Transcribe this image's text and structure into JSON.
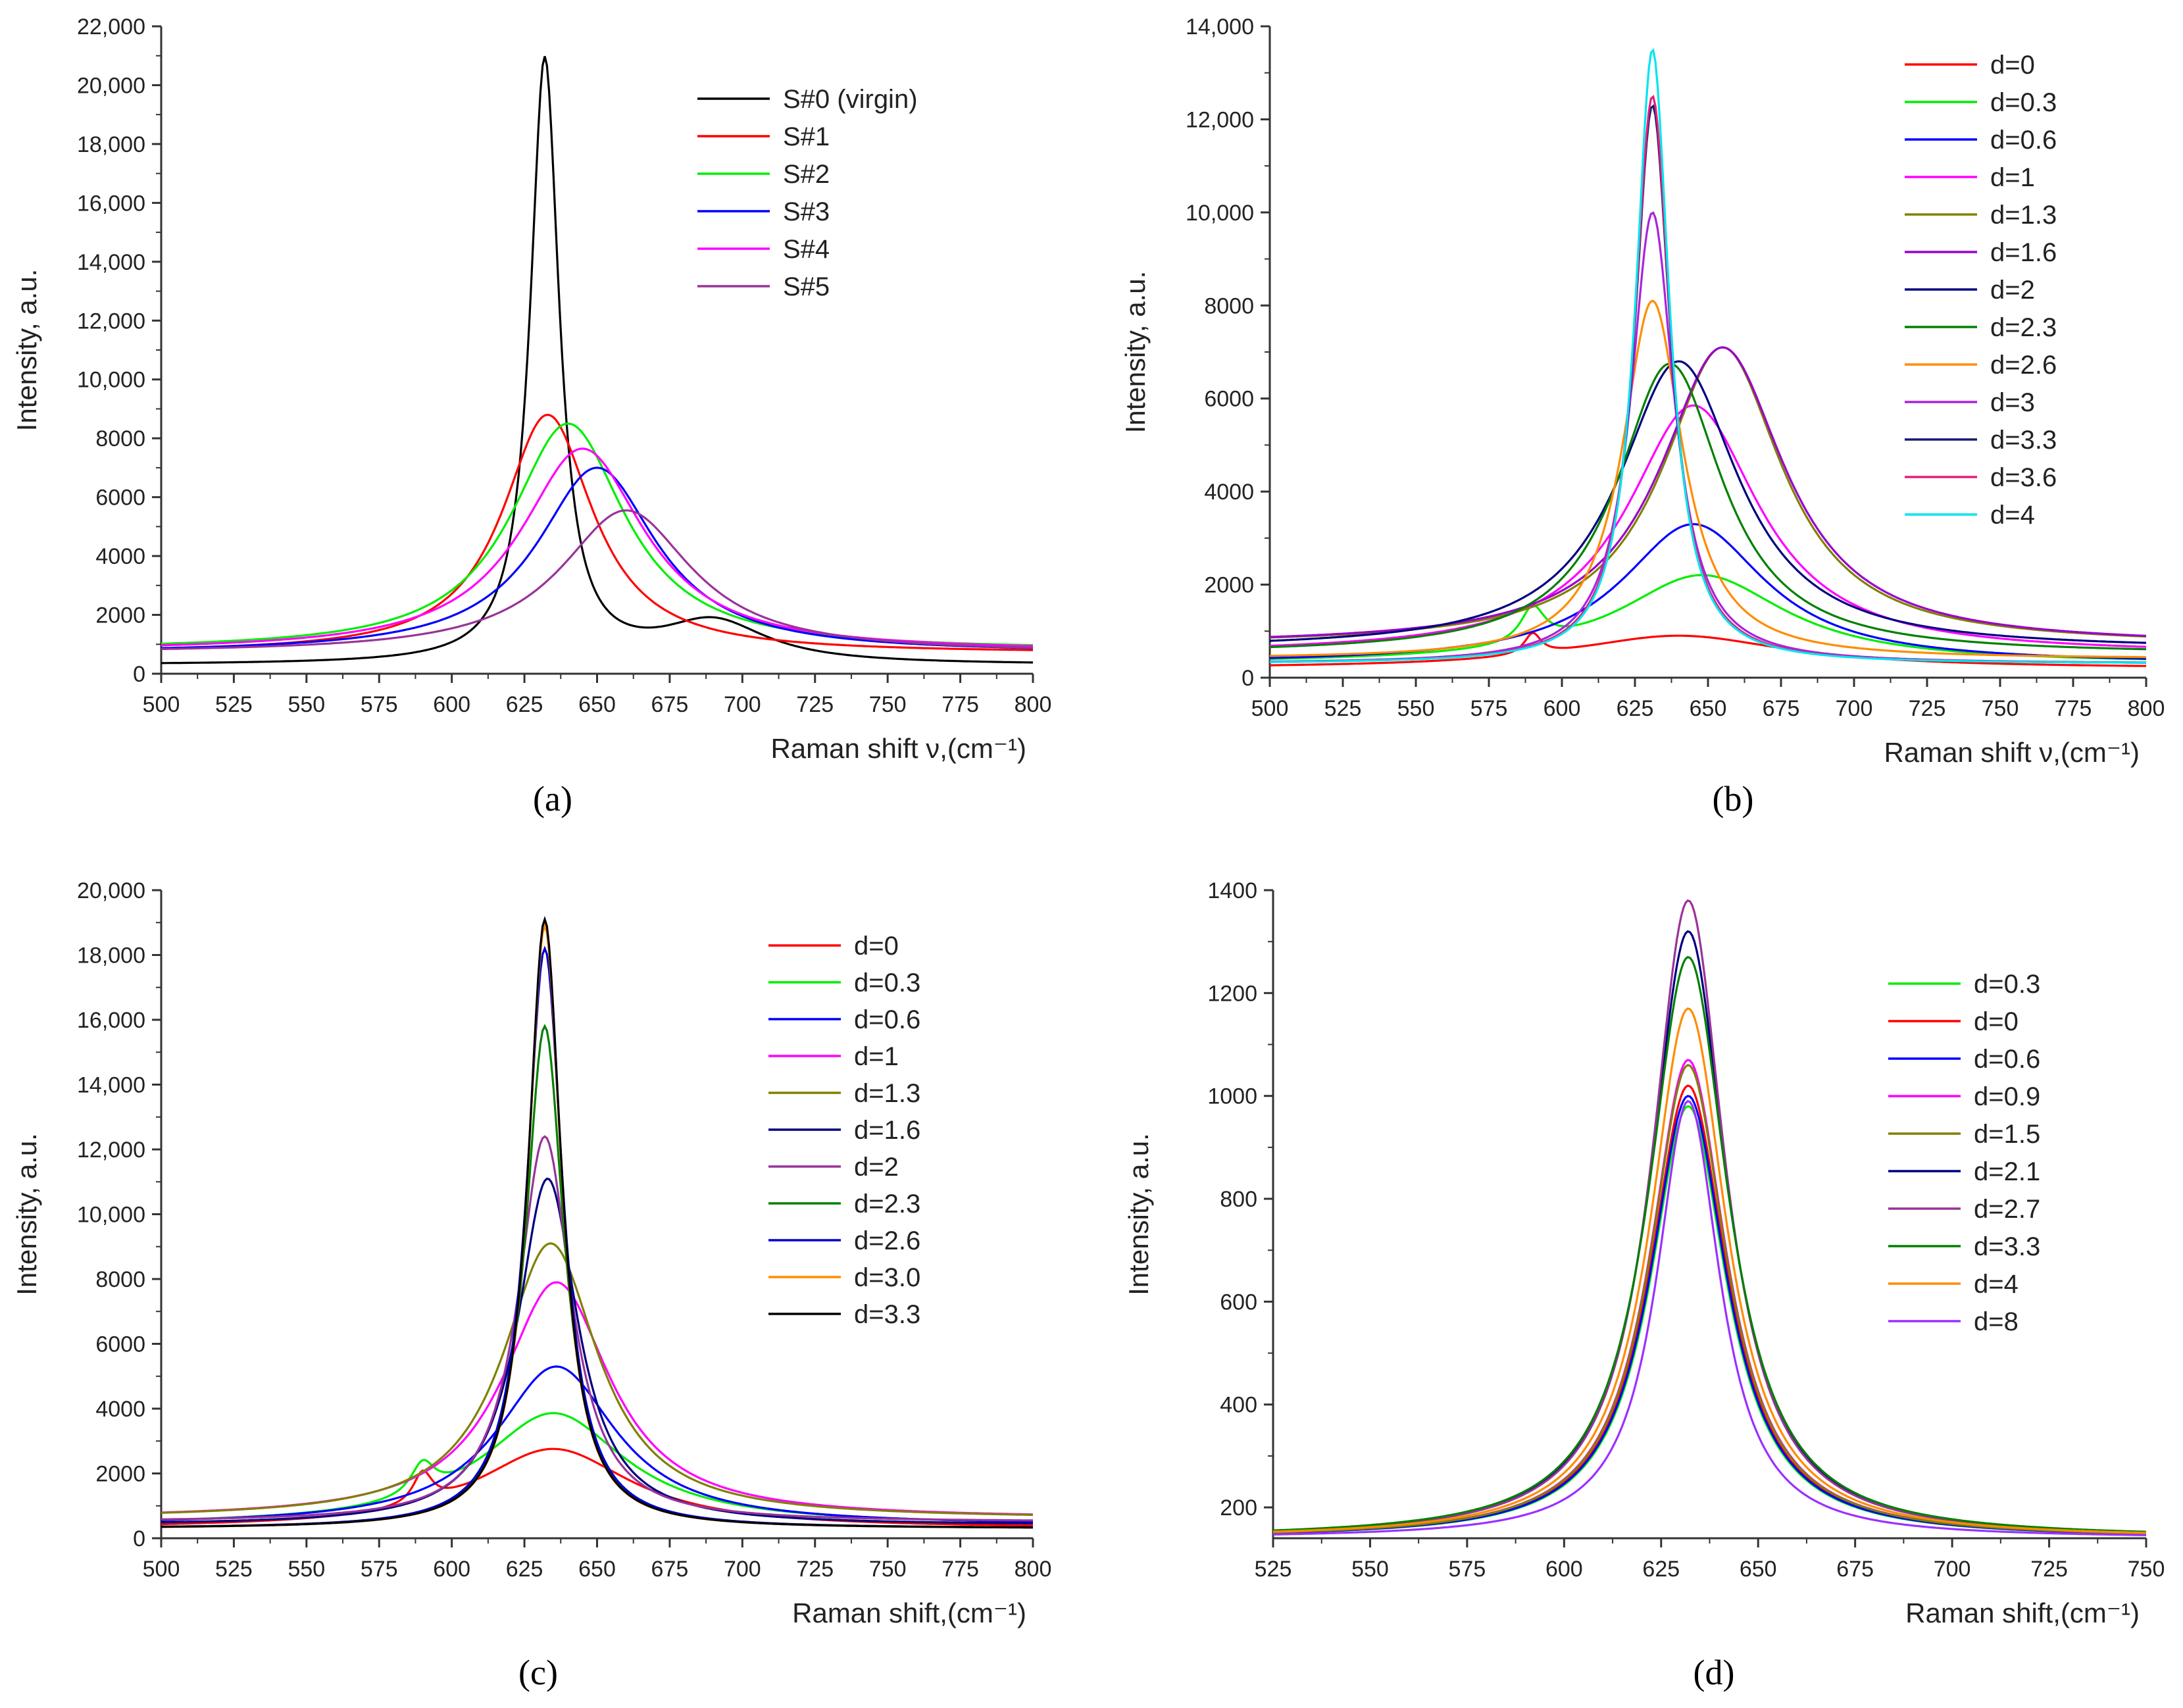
{
  "figure": {
    "panels": [
      {
        "caption": "(a)",
        "chart_data": {
          "type": "line",
          "xlabel": "Raman shift ν,(cm⁻¹)",
          "ylabel": "Intensity, a.u.",
          "xlim": [
            500,
            800
          ],
          "ylim": [
            0,
            22000
          ],
          "xticks": [
            500,
            525,
            550,
            575,
            600,
            625,
            650,
            675,
            700,
            725,
            750,
            775,
            800
          ],
          "yticks": [
            0,
            2000,
            4000,
            6000,
            8000,
            10000,
            12000,
            14000,
            16000,
            18000,
            20000,
            22000
          ],
          "ytick_labels": [
            "0",
            "2000",
            "4000",
            "6000",
            "8000",
            "10,000",
            "12,000",
            "14,000",
            "16,000",
            "18,000",
            "20,000",
            "22,000"
          ],
          "legend_position": "top-right",
          "series": [
            {
              "name": "S#0 (virgin)",
              "color": "#000000",
              "shape": "lor",
              "base": 300,
              "center": 632,
              "amp": 20500,
              "width": 12,
              "tail": 1400,
              "tail_center": 690,
              "tail_width": 45
            },
            {
              "name": "S#1",
              "color": "#ff0000",
              "shape": "lor",
              "base": 700,
              "center": 633,
              "amp": 8100,
              "width": 38,
              "tail": 0,
              "tail_center": 690,
              "tail_width": 40
            },
            {
              "name": "S#2",
              "color": "#00ee00",
              "shape": "lor",
              "base": 800,
              "center": 640,
              "amp": 7700,
              "width": 48,
              "tail": 0,
              "tail_center": 690,
              "tail_width": 40
            },
            {
              "name": "S#3",
              "color": "#0000ff",
              "shape": "lor",
              "base": 700,
              "center": 650,
              "amp": 6300,
              "width": 50,
              "tail": 0,
              "tail_center": 690,
              "tail_width": 40
            },
            {
              "name": "S#4",
              "color": "#ff00ff",
              "shape": "lor",
              "base": 750,
              "center": 645,
              "amp": 6900,
              "width": 52,
              "tail": 0,
              "tail_center": 690,
              "tail_width": 40
            },
            {
              "name": "S#5",
              "color": "#993399",
              "shape": "lor",
              "base": 700,
              "center": 660,
              "amp": 4850,
              "width": 55,
              "tail": 0,
              "tail_center": 690,
              "tail_width": 40
            }
          ]
        }
      },
      {
        "caption": "(b)",
        "chart_data": {
          "type": "line",
          "xlabel": "Raman shift ν,(cm⁻¹)",
          "ylabel": "Intensity, a.u.",
          "xlim": [
            500,
            800
          ],
          "ylim": [
            0,
            14000
          ],
          "xticks": [
            500,
            525,
            550,
            575,
            600,
            625,
            650,
            675,
            700,
            725,
            750,
            775,
            800
          ],
          "yticks": [
            0,
            2000,
            4000,
            6000,
            8000,
            10000,
            12000,
            14000
          ],
          "ytick_labels": [
            "0",
            "2000",
            "4000",
            "6000",
            "8000",
            "10,000",
            "12,000",
            "14,000"
          ],
          "legend_position": "top-right",
          "series": [
            {
              "name": "d=0",
              "color": "#ff0000",
              "shape": "lor",
              "base": 200,
              "center": 640,
              "amp": 700,
              "width": 90,
              "tail": 450,
              "tail_center": 590,
              "tail_width": 7
            },
            {
              "name": "d=0.3",
              "color": "#00ee00",
              "shape": "lor",
              "base": 300,
              "center": 648,
              "amp": 1900,
              "width": 70,
              "tail": 750,
              "tail_center": 590,
              "tail_width": 10
            },
            {
              "name": "d=0.6",
              "color": "#0000ff",
              "shape": "lor",
              "base": 300,
              "center": 645,
              "amp": 3000,
              "width": 60,
              "tail": 0,
              "tail_center": 590,
              "tail_width": 10
            },
            {
              "name": "d=1",
              "color": "#ff00ff",
              "shape": "lor",
              "base": 500,
              "center": 645,
              "amp": 5350,
              "width": 55,
              "tail": 0,
              "tail_center": 590,
              "tail_width": 10
            },
            {
              "name": "d=1.3",
              "color": "#808000",
              "shape": "lor",
              "base": 700,
              "center": 655,
              "amp": 6400,
              "width": 50,
              "tail": 0,
              "tail_center": 590,
              "tail_width": 10
            },
            {
              "name": "d=1.6",
              "color": "#9900cc",
              "shape": "lor",
              "base": 700,
              "center": 655,
              "amp": 6400,
              "width": 52,
              "tail": 0,
              "tail_center": 590,
              "tail_width": 10
            },
            {
              "name": "d=2",
              "color": "#000080",
              "shape": "lor",
              "base": 600,
              "center": 640,
              "amp": 6200,
              "width": 50,
              "tail": 0,
              "tail_center": 590,
              "tail_width": 10
            },
            {
              "name": "d=2.3",
              "color": "#008000",
              "shape": "lor",
              "base": 500,
              "center": 637,
              "amp": 6250,
              "width": 44,
              "tail": 0,
              "tail_center": 590,
              "tail_width": 10
            },
            {
              "name": "d=2.6",
              "color": "#ff8c00",
              "shape": "lor",
              "base": 400,
              "center": 631,
              "amp": 7700,
              "width": 25,
              "tail": 0,
              "tail_center": 590,
              "tail_width": 10
            },
            {
              "name": "d=3",
              "color": "#aa22dd",
              "shape": "lor",
              "base": 300,
              "center": 631,
              "amp": 9700,
              "width": 18,
              "tail": 0,
              "tail_center": 590,
              "tail_width": 10
            },
            {
              "name": "d=3.3",
              "color": "#191970",
              "shape": "lor",
              "base": 300,
              "center": 631,
              "amp": 12000,
              "width": 15,
              "tail": 0,
              "tail_center": 590,
              "tail_width": 10
            },
            {
              "name": "d=3.6",
              "color": "#e0207a",
              "shape": "lor",
              "base": 300,
              "center": 631,
              "amp": 12200,
              "width": 15,
              "tail": 0,
              "tail_center": 590,
              "tail_width": 10
            },
            {
              "name": "d=4",
              "color": "#00e5ee",
              "shape": "lor",
              "base": 300,
              "center": 631,
              "amp": 13200,
              "width": 14,
              "tail": 0,
              "tail_center": 590,
              "tail_width": 10
            }
          ]
        }
      },
      {
        "caption": "(c)",
        "chart_data": {
          "type": "line",
          "xlabel": "Raman shift,(cm⁻¹)",
          "ylabel": "Intensity, a.u.",
          "xlim": [
            500,
            800
          ],
          "ylim": [
            0,
            20000
          ],
          "xticks": [
            500,
            525,
            550,
            575,
            600,
            625,
            650,
            675,
            700,
            725,
            750,
            775,
            800
          ],
          "yticks": [
            0,
            2000,
            4000,
            6000,
            8000,
            10000,
            12000,
            14000,
            16000,
            18000,
            20000
          ],
          "ytick_labels": [
            "0",
            "2000",
            "4000",
            "6000",
            "8000",
            "10,000",
            "12,000",
            "14,000",
            "16,000",
            "18,000",
            "20,000"
          ],
          "legend_position": "top-right",
          "series": [
            {
              "name": "d=0",
              "color": "#ff0000",
              "shape": "lor",
              "base": 300,
              "center": 635,
              "amp": 2450,
              "width": 65,
              "tail": 950,
              "tail_center": 590,
              "tail_width": 8
            },
            {
              "name": "d=0.3",
              "color": "#00ee00",
              "shape": "lor",
              "base": 400,
              "center": 635,
              "amp": 3450,
              "width": 60,
              "tail": 950,
              "tail_center": 590,
              "tail_width": 10
            },
            {
              "name": "d=0.6",
              "color": "#0000ff",
              "shape": "lor",
              "base": 400,
              "center": 636,
              "amp": 4900,
              "width": 50,
              "tail": 0,
              "tail_center": 590,
              "tail_width": 10
            },
            {
              "name": "d=1",
              "color": "#ff00ff",
              "shape": "lor",
              "base": 600,
              "center": 636,
              "amp": 7300,
              "width": 45,
              "tail": 0,
              "tail_center": 590,
              "tail_width": 10
            },
            {
              "name": "d=1.3",
              "color": "#808000",
              "shape": "lor",
              "base": 600,
              "center": 634,
              "amp": 8500,
              "width": 40,
              "tail": 0,
              "tail_center": 590,
              "tail_width": 10
            },
            {
              "name": "d=1.6",
              "color": "#000080",
              "shape": "lor",
              "base": 400,
              "center": 633,
              "amp": 10700,
              "width": 25,
              "tail": 0,
              "tail_center": 590,
              "tail_width": 10
            },
            {
              "name": "d=2",
              "color": "#993399",
              "shape": "lor",
              "base": 500,
              "center": 632,
              "amp": 11900,
              "width": 22,
              "tail": 0,
              "tail_center": 590,
              "tail_width": 10
            },
            {
              "name": "d=2.3",
              "color": "#008000",
              "shape": "lor",
              "base": 300,
              "center": 632,
              "amp": 15500,
              "width": 16,
              "tail": 0,
              "tail_center": 590,
              "tail_width": 10
            },
            {
              "name": "d=2.6",
              "color": "#0000cd",
              "shape": "lor",
              "base": 300,
              "center": 632,
              "amp": 17900,
              "width": 15,
              "tail": 0,
              "tail_center": 590,
              "tail_width": 10
            },
            {
              "name": "d=3.0",
              "color": "#ff8c00",
              "shape": "lor",
              "base": 300,
              "center": 632,
              "amp": 18600,
              "width": 14,
              "tail": 0,
              "tail_center": 590,
              "tail_width": 10
            },
            {
              "name": "d=3.3",
              "color": "#000000",
              "shape": "lor",
              "base": 300,
              "center": 632,
              "amp": 18800,
              "width": 14,
              "tail": 0,
              "tail_center": 590,
              "tail_width": 10
            }
          ]
        }
      },
      {
        "caption": "(d)",
        "chart_data": {
          "type": "line",
          "xlabel": "Raman shift,(cm⁻¹)",
          "ylabel": "Intensity, a.u.",
          "xlim": [
            525,
            750
          ],
          "ylim": [
            140,
            1400
          ],
          "xticks": [
            525,
            550,
            575,
            600,
            625,
            650,
            675,
            700,
            725,
            750
          ],
          "yticks": [
            200,
            400,
            600,
            800,
            1000,
            1200,
            1400
          ],
          "ytick_labels": [
            "200",
            "400",
            "600",
            "800",
            "1000",
            "1200",
            "1400"
          ],
          "legend_position": "right",
          "series": [
            {
              "name": "d=0.3",
              "color": "#00ee00",
              "shape": "lor",
              "base": 140,
              "center": 632,
              "amp": 840,
              "width": 24,
              "tail": 0,
              "tail_center": 680,
              "tail_width": 30
            },
            {
              "name": "d=0",
              "color": "#ff0000",
              "shape": "lor",
              "base": 140,
              "center": 632,
              "amp": 880,
              "width": 24,
              "tail": 0,
              "tail_center": 680,
              "tail_width": 30
            },
            {
              "name": "d=0.6",
              "color": "#0000ff",
              "shape": "lor",
              "base": 140,
              "center": 632,
              "amp": 860,
              "width": 24,
              "tail": 0,
              "tail_center": 680,
              "tail_width": 30
            },
            {
              "name": "d=0.9",
              "color": "#ff00ff",
              "shape": "lor",
              "base": 140,
              "center": 632,
              "amp": 930,
              "width": 24,
              "tail": 0,
              "tail_center": 680,
              "tail_width": 30
            },
            {
              "name": "d=1.5",
              "color": "#808000",
              "shape": "lor",
              "base": 140,
              "center": 632,
              "amp": 920,
              "width": 24,
              "tail": 0,
              "tail_center": 680,
              "tail_width": 30
            },
            {
              "name": "d=2.1",
              "color": "#000080",
              "shape": "lor",
              "base": 140,
              "center": 632,
              "amp": 1180,
              "width": 24,
              "tail": 0,
              "tail_center": 680,
              "tail_width": 30
            },
            {
              "name": "d=2.7",
              "color": "#993399",
              "shape": "lor",
              "base": 140,
              "center": 632,
              "amp": 1240,
              "width": 23,
              "tail": 0,
              "tail_center": 680,
              "tail_width": 30
            },
            {
              "name": "d=3.3",
              "color": "#008000",
              "shape": "lor",
              "base": 140,
              "center": 632,
              "amp": 1130,
              "width": 25,
              "tail": 0,
              "tail_center": 680,
              "tail_width": 30
            },
            {
              "name": "d=4",
              "color": "#ff8c00",
              "shape": "lor",
              "base": 140,
              "center": 632,
              "amp": 1030,
              "width": 24,
              "tail": 0,
              "tail_center": 680,
              "tail_width": 30
            },
            {
              "name": "d=8",
              "color": "#9b30ff",
              "shape": "lor",
              "base": 140,
              "center": 632,
              "amp": 850,
              "width": 20,
              "tail": 0,
              "tail_center": 680,
              "tail_width": 30
            }
          ]
        }
      }
    ]
  }
}
